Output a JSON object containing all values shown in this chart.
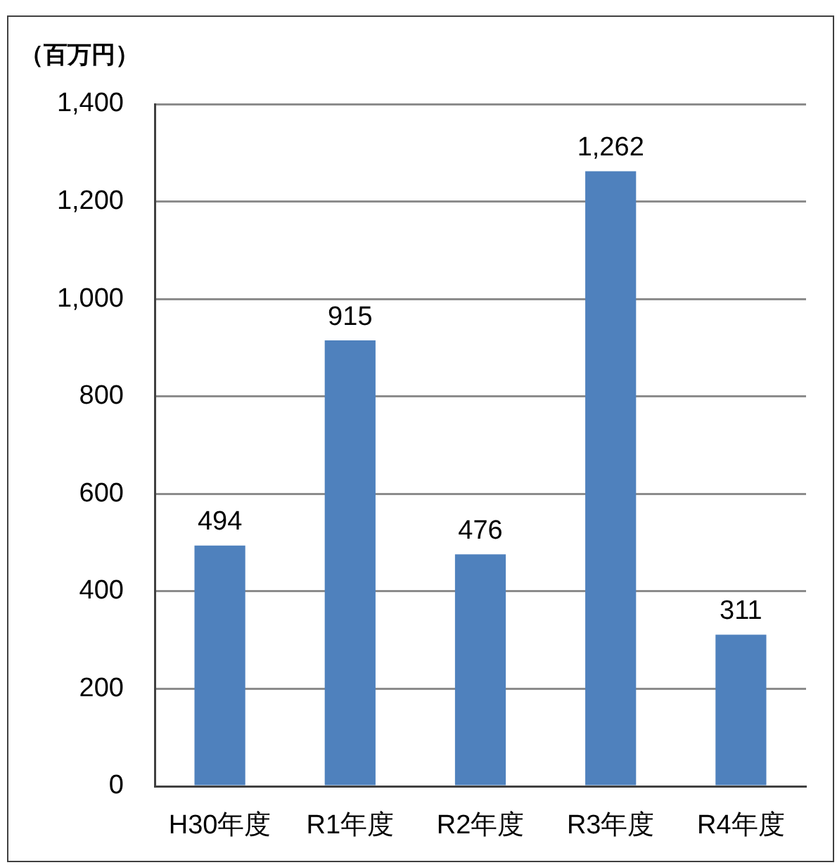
{
  "chart_data": {
    "type": "bar",
    "ylabel": "（百万円）",
    "categories": [
      "H30年度",
      "R1年度",
      "R2年度",
      "R3年度",
      "R4年度"
    ],
    "values": [
      494,
      915,
      476,
      1262,
      311
    ],
    "value_labels": [
      "494",
      "915",
      "476",
      "1,262",
      "311"
    ],
    "color": "#4f81bd",
    "ylim": [
      0,
      1400
    ],
    "yticks": [
      0,
      200,
      400,
      600,
      800,
      {
        "value": 1000,
        "label": "1,000"
      },
      {
        "value": 1200,
        "label": "1,200"
      },
      {
        "value": 1400,
        "label": "1,400"
      }
    ],
    "grid": "y"
  }
}
